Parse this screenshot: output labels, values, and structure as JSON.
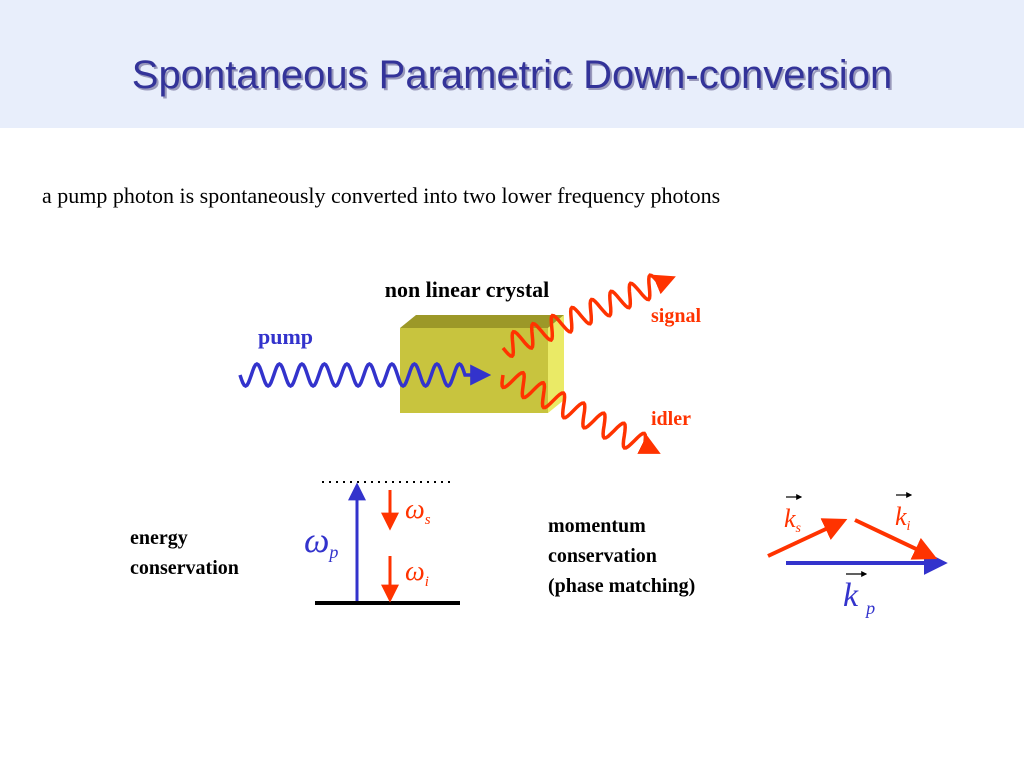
{
  "header": {
    "title": "Spontaneous Parametric Down-conversion"
  },
  "intro": "a pump photon is spontaneously converted into two lower frequency photons",
  "crystal_diagram": {
    "crystal_label": "non linear crystal",
    "pump_label": "pump",
    "signal_label": "signal",
    "idler_label": "idler"
  },
  "energy": {
    "label_lines": [
      "energy",
      "conservation"
    ],
    "symbols": [
      {
        "symbol": "ω",
        "sub": "s"
      },
      {
        "symbol": "ω",
        "sub": "p"
      },
      {
        "symbol": "ω",
        "sub": "i"
      }
    ]
  },
  "momentum": {
    "label_lines": [
      "momentum",
      "conservation",
      "(phase matching)"
    ],
    "symbols": [
      {
        "symbol": "k",
        "sub": "s"
      },
      {
        "symbol": "k",
        "sub": "i"
      },
      {
        "symbol": "k",
        "sub": "p"
      }
    ]
  }
}
